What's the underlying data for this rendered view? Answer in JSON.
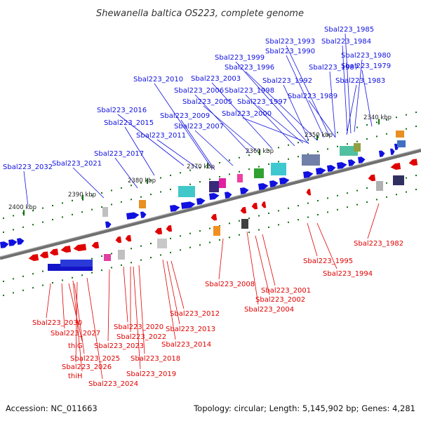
{
  "title": "Shewanella baltica OS223, complete genome",
  "footer": {
    "accession": "Accession: NC_011663",
    "summary": "Topology: circular; Length: 5,145,902 bp; Genes: 4,281"
  },
  "colors": {
    "forward": "#1010e0",
    "reverse": "#e00000",
    "backbone": "#808080",
    "tick": "#107010"
  },
  "ruler": [
    "2340 kbp",
    "2350 kbp",
    "2360 kbp",
    "2370 kbp",
    "2380 kbp",
    "2390 kbp",
    "2400 kbp"
  ],
  "forward_genes": [
    "Sbal223_1979",
    "Sbal223_1980",
    "Sbal223_1983",
    "Sbal223_1984",
    "Sbal223_1985",
    "Sbal223_1987",
    "Sbal223_1989",
    "Sbal223_1990",
    "Sbal223_1992",
    "Sbal223_1993",
    "Sbal223_1996",
    "Sbal223_1997",
    "Sbal223_1998",
    "Sbal223_1999",
    "Sbal223_2000",
    "Sbal223_2003",
    "Sbal223_2005",
    "Sbal223_2006",
    "Sbal223_2007",
    "Sbal223_2009",
    "Sbal223_2010",
    "Sbal223_2011",
    "Sbal223_2015",
    "Sbal223_2016",
    "Sbal223_2017",
    "Sbal223_2021",
    "Sbal223_2032"
  ],
  "reverse_genes": [
    "Sbal223_1982",
    "Sbal223_1994",
    "Sbal223_1995",
    "Sbal223_2001",
    "Sbal223_2002",
    "Sbal223_2004",
    "Sbal223_2008",
    "Sbal223_2012",
    "Sbal223_2013",
    "Sbal223_2014",
    "Sbal223_2018",
    "Sbal223_2019",
    "Sbal223_2020",
    "Sbal223_2022",
    "Sbal223_2023",
    "Sbal223_2024",
    "Sbal223_2025",
    "Sbal223_2026",
    "Sbal223_2027",
    "Sbal223_2030",
    "thiG",
    "thiH"
  ]
}
